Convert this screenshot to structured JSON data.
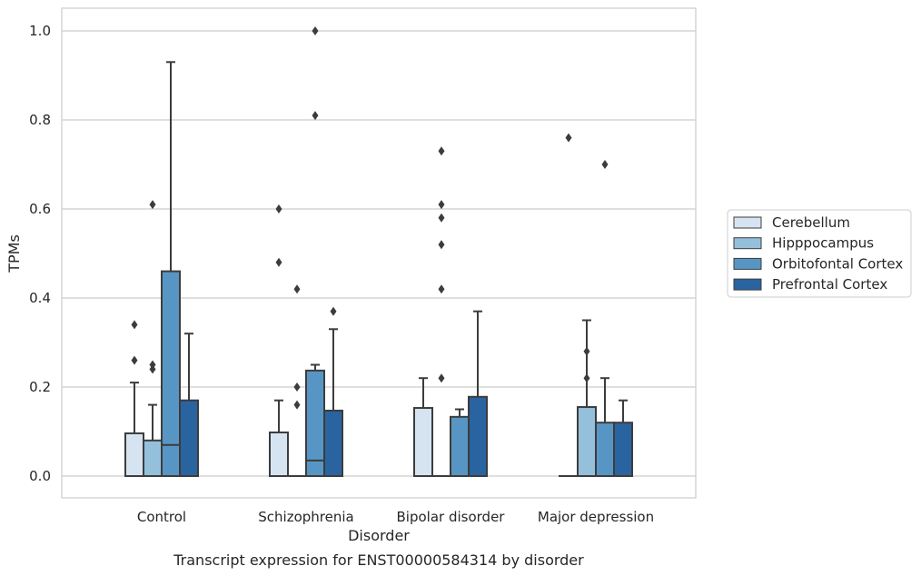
{
  "chart_data": {
    "type": "box",
    "title": "",
    "caption": "Transcript expression for ENST00000584314 by disorder",
    "xlabel": "Disorder",
    "ylabel": "TPMs",
    "ylim": [
      -0.05,
      1.05
    ],
    "yticks": [
      "0.0",
      "0.2",
      "0.4",
      "0.6",
      "0.8",
      "1.0"
    ],
    "ytick_values": [
      0,
      0.2,
      0.4,
      0.6,
      0.8,
      1.0
    ],
    "grid": true,
    "legend_position": "right",
    "categories": [
      "Control",
      "Schizophrenia",
      "Bipolar disorder",
      "Major depression"
    ],
    "series": [
      {
        "name": "Cerebellum",
        "color": "#d6e4f1",
        "boxes": [
          {
            "q1": 0,
            "median": 0,
            "q3": 0.096,
            "whisker_low": 0,
            "whisker_high": 0.21,
            "outliers": [
              0.26,
              0.34
            ]
          },
          {
            "q1": 0,
            "median": 0,
            "q3": 0.098,
            "whisker_low": 0,
            "whisker_high": 0.17,
            "outliers": [
              0.48,
              0.6
            ]
          },
          {
            "q1": 0,
            "median": 0,
            "q3": 0.153,
            "whisker_low": 0,
            "whisker_high": 0.22,
            "outliers": []
          },
          {
            "q1": 0,
            "median": 0,
            "q3": 0,
            "whisker_low": 0,
            "whisker_high": 0,
            "outliers": [
              0.76
            ]
          }
        ]
      },
      {
        "name": "Hipppocampus",
        "color": "#94c0dc",
        "boxes": [
          {
            "q1": 0,
            "median": 0,
            "q3": 0.08,
            "whisker_low": 0,
            "whisker_high": 0.16,
            "outliers": [
              0.24,
              0.25,
              0.61
            ]
          },
          {
            "q1": 0,
            "median": 0,
            "q3": 0,
            "whisker_low": 0,
            "whisker_high": 0,
            "outliers": [
              0.16,
              0.2,
              0.42
            ]
          },
          {
            "q1": 0,
            "median": 0,
            "q3": 0,
            "whisker_low": 0,
            "whisker_high": 0,
            "outliers": [
              0.22,
              0.42,
              0.52,
              0.58,
              0.61,
              0.73
            ]
          },
          {
            "q1": 0,
            "median": 0,
            "q3": 0.155,
            "whisker_low": 0,
            "whisker_high": 0.35,
            "outliers": [
              0.22,
              0.28
            ]
          }
        ]
      },
      {
        "name": "Orbitofontal Cortex",
        "color": "#5796c4",
        "boxes": [
          {
            "q1": 0,
            "median": 0.07,
            "q3": 0.46,
            "whisker_low": 0,
            "whisker_high": 0.93,
            "outliers": []
          },
          {
            "q1": 0,
            "median": 0.035,
            "q3": 0.237,
            "whisker_low": 0,
            "whisker_high": 0.25,
            "outliers": [
              0.81,
              1.0
            ]
          },
          {
            "q1": 0,
            "median": 0,
            "q3": 0.133,
            "whisker_low": 0,
            "whisker_high": 0.15,
            "outliers": []
          },
          {
            "q1": 0,
            "median": 0,
            "q3": 0.12,
            "whisker_low": 0,
            "whisker_high": 0.22,
            "outliers": [
              0.7
            ]
          }
        ]
      },
      {
        "name": "Prefrontal Cortex",
        "color": "#2a64a0",
        "boxes": [
          {
            "q1": 0,
            "median": 0,
            "q3": 0.17,
            "whisker_low": 0,
            "whisker_high": 0.32,
            "outliers": []
          },
          {
            "q1": 0,
            "median": 0,
            "q3": 0.147,
            "whisker_low": 0,
            "whisker_high": 0.33,
            "outliers": [
              0.37
            ]
          },
          {
            "q1": 0,
            "median": 0,
            "q3": 0.178,
            "whisker_low": 0,
            "whisker_high": 0.37,
            "outliers": []
          },
          {
            "q1": 0,
            "median": 0,
            "q3": 0.12,
            "whisker_low": 0,
            "whisker_high": 0.17,
            "outliers": []
          }
        ]
      }
    ]
  }
}
